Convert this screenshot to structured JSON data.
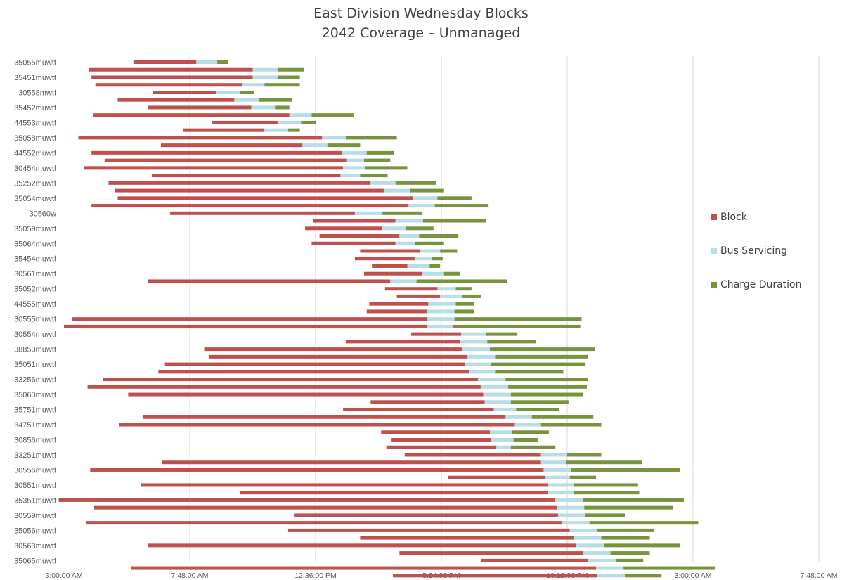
{
  "chart_data": {
    "type": "bar",
    "orientation": "horizontal-stacked",
    "title": "East Division Wednesday Blocks",
    "subtitle": "2042 Coverage – Unmanaged",
    "x_ticks": [
      "3:00:00 AM",
      "7:48:00 AM",
      "12:36:00 PM",
      "5:24:00 PM",
      "10:12:00 PM",
      "3:00:00 AM",
      "7:48:00 AM"
    ],
    "legend_position": "right",
    "grid": true,
    "series": [
      {
        "name": "Block",
        "color": "#C0504D"
      },
      {
        "name": "Bus Servicing",
        "color": "#B7DEE8"
      },
      {
        "name": "Charge Duration",
        "color": "#77933C"
      }
    ],
    "y_labels": [
      "35055muwtf",
      "35451muwtf",
      "30558mwtf",
      "35452muwtf",
      "44553muwtf",
      "35058muwtf",
      "44552muwtf",
      "30454muwtf",
      "35252muwtf",
      "35054muwtf",
      "30560w",
      "35059muwtf",
      "35064muwtf",
      "35454muwtf",
      "30561muwtf",
      "35052muwtf",
      "44555muwtf",
      "30555muwtf",
      "30554muwtf",
      "38853muwtf",
      "35051muwtf",
      "33256muwtf",
      "35060muwtf",
      "35751muwtf",
      "34751muwtf",
      "30856muwtf",
      "33251muwtf",
      "30556muwtf",
      "30551muwtf",
      "35351muwtf",
      "30559muwtf",
      "35056muwtf",
      "30563muwtf",
      "35065muwtf"
    ],
    "x_unit": "hours since 3:00 AM",
    "rows": [
      {
        "start": 2.65,
        "block": 2.4,
        "service": 0.8,
        "charge": 0.4
      },
      {
        "start": 0.95,
        "block": 6.25,
        "service": 0.95,
        "charge": 1.0
      },
      {
        "start": 1.05,
        "block": 6.15,
        "service": 0.95,
        "charge": 0.85
      },
      {
        "start": 1.2,
        "block": 5.6,
        "service": 0.85,
        "charge": 1.35
      },
      {
        "start": 3.4,
        "block": 2.4,
        "service": 0.9,
        "charge": 0.55
      },
      {
        "start": 2.05,
        "block": 4.45,
        "service": 0.95,
        "charge": 1.25
      },
      {
        "start": 3.2,
        "block": 3.95,
        "service": 0.9,
        "charge": 0.55
      },
      {
        "start": 1.1,
        "block": 7.5,
        "service": 0.85,
        "charge": 1.6
      },
      {
        "start": 5.65,
        "block": 2.5,
        "service": 0.9,
        "charge": 0.55
      },
      {
        "start": 4.55,
        "block": 3.1,
        "service": 0.9,
        "charge": 0.45
      },
      {
        "start": 0.55,
        "block": 9.3,
        "service": 0.9,
        "charge": 1.95
      },
      {
        "start": 3.7,
        "block": 5.4,
        "service": 0.95,
        "charge": 1.25
      },
      {
        "start": 1.05,
        "block": 9.55,
        "service": 0.95,
        "charge": 1.05
      },
      {
        "start": 1.55,
        "block": 9.25,
        "service": 0.65,
        "charge": 1.0
      },
      {
        "start": 0.75,
        "block": 9.9,
        "service": 0.85,
        "charge": 1.6
      },
      {
        "start": 3.35,
        "block": 7.2,
        "service": 0.75,
        "charge": 1.05
      },
      {
        "start": 1.7,
        "block": 10.0,
        "service": 0.95,
        "charge": 1.55
      },
      {
        "start": 1.95,
        "block": 10.25,
        "service": 1.0,
        "charge": 1.3
      },
      {
        "start": 2.05,
        "block": 11.25,
        "service": 0.95,
        "charge": 1.3
      },
      {
        "start": 1.05,
        "block": 12.1,
        "service": 1.0,
        "charge": 2.05
      },
      {
        "start": 4.05,
        "block": 7.05,
        "service": 1.05,
        "charge": 1.5
      },
      {
        "start": 9.5,
        "block": 3.15,
        "service": 1.05,
        "charge": 2.4
      },
      {
        "start": 9.2,
        "block": 2.95,
        "service": 0.9,
        "charge": 1.05
      },
      {
        "start": 9.75,
        "block": 3.05,
        "service": 0.75,
        "charge": 1.5
      },
      {
        "start": 9.45,
        "block": 3.2,
        "service": 0.75,
        "charge": 1.1
      },
      {
        "start": 11.3,
        "block": 2.3,
        "service": 0.75,
        "charge": 0.65
      },
      {
        "start": 11.1,
        "block": 2.3,
        "service": 0.65,
        "charge": 0.4
      },
      {
        "start": 11.75,
        "block": 1.35,
        "service": 0.85,
        "charge": 0.4
      },
      {
        "start": 11.45,
        "block": 2.2,
        "service": 0.85,
        "charge": 0.6
      },
      {
        "start": 3.2,
        "block": 9.25,
        "service": 1.0,
        "charge": 3.45
      },
      {
        "start": 12.25,
        "block": 2.0,
        "service": 0.7,
        "charge": 0.6
      },
      {
        "start": 12.7,
        "block": 1.65,
        "service": 0.85,
        "charge": 0.7
      },
      {
        "start": 11.65,
        "block": 2.25,
        "service": 1.05,
        "charge": 0.7
      },
      {
        "start": 11.55,
        "block": 2.3,
        "service": 1.05,
        "charge": 0.75
      },
      {
        "start": 0.3,
        "block": 13.55,
        "service": 1.05,
        "charge": 4.85
      },
      {
        "start": 0.0,
        "block": 13.85,
        "service": 1.0,
        "charge": 4.85
      },
      {
        "start": 13.25,
        "block": 1.9,
        "service": 0.95,
        "charge": 1.2
      },
      {
        "start": 10.75,
        "block": 4.35,
        "service": 1.05,
        "charge": 1.85
      },
      {
        "start": 5.35,
        "block": 9.85,
        "service": 1.05,
        "charge": 4.0
      },
      {
        "start": 5.55,
        "block": 9.85,
        "service": 1.05,
        "charge": 3.55
      },
      {
        "start": 3.85,
        "block": 11.45,
        "service": 1.0,
        "charge": 3.6
      },
      {
        "start": 3.6,
        "block": 11.85,
        "service": 1.0,
        "charge": 2.6
      },
      {
        "start": 1.5,
        "block": 14.3,
        "service": 1.05,
        "charge": 3.15
      },
      {
        "start": 0.9,
        "block": 15.0,
        "service": 1.05,
        "charge": 3.0
      },
      {
        "start": 2.45,
        "block": 13.55,
        "service": 1.05,
        "charge": 2.75
      },
      {
        "start": 11.7,
        "block": 4.35,
        "service": 1.0,
        "charge": 2.2
      },
      {
        "start": 10.65,
        "block": 5.75,
        "service": 0.85,
        "charge": 1.65
      },
      {
        "start": 3.0,
        "block": 13.85,
        "service": 1.0,
        "charge": 2.35
      },
      {
        "start": 2.1,
        "block": 15.1,
        "service": 1.0,
        "charge": 2.3
      },
      {
        "start": 12.1,
        "block": 4.15,
        "service": 0.85,
        "charge": 1.4
      },
      {
        "start": 12.5,
        "block": 3.8,
        "service": 0.85,
        "charge": 0.95
      },
      {
        "start": 12.3,
        "block": 4.2,
        "service": 0.55,
        "charge": 1.7
      },
      {
        "start": 13.0,
        "block": 5.2,
        "service": 1.0,
        "charge": 1.3
      },
      {
        "start": 3.75,
        "block": 14.45,
        "service": 0.95,
        "charge": 2.9
      },
      {
        "start": 1.0,
        "block": 17.3,
        "service": 1.05,
        "charge": 4.15
      },
      {
        "start": 14.65,
        "block": 3.7,
        "service": 0.95,
        "charge": 1.0
      },
      {
        "start": 2.95,
        "block": 15.5,
        "service": 1.0,
        "charge": 2.45
      },
      {
        "start": 6.7,
        "block": 11.75,
        "service": 1.0,
        "charge": 2.5
      },
      {
        "start": -0.2,
        "block": 18.95,
        "service": 1.05,
        "charge": 3.85
      },
      {
        "start": 1.15,
        "block": 17.65,
        "service": 1.05,
        "charge": 3.4
      },
      {
        "start": 8.8,
        "block": 10.05,
        "service": 1.05,
        "charge": 1.5
      },
      {
        "start": 0.85,
        "block": 18.15,
        "service": 1.05,
        "charge": 4.15
      },
      {
        "start": 8.55,
        "block": 10.75,
        "service": 1.05,
        "charge": 2.15
      },
      {
        "start": 11.3,
        "block": 8.15,
        "service": 1.05,
        "charge": 1.85
      },
      {
        "start": 3.2,
        "block": 16.35,
        "service": 1.05,
        "charge": 2.9
      },
      {
        "start": 12.8,
        "block": 7.0,
        "service": 1.05,
        "charge": 1.5
      },
      {
        "start": 15.9,
        "block": 4.1,
        "service": 1.05,
        "charge": 1.05
      },
      {
        "start": 2.55,
        "block": 17.75,
        "service": 1.05,
        "charge": 3.5
      },
      {
        "start": 12.55,
        "block": 7.8,
        "service": 1.05,
        "charge": 1.4
      }
    ],
    "xlim_hours": [
      0,
      28.8
    ]
  }
}
